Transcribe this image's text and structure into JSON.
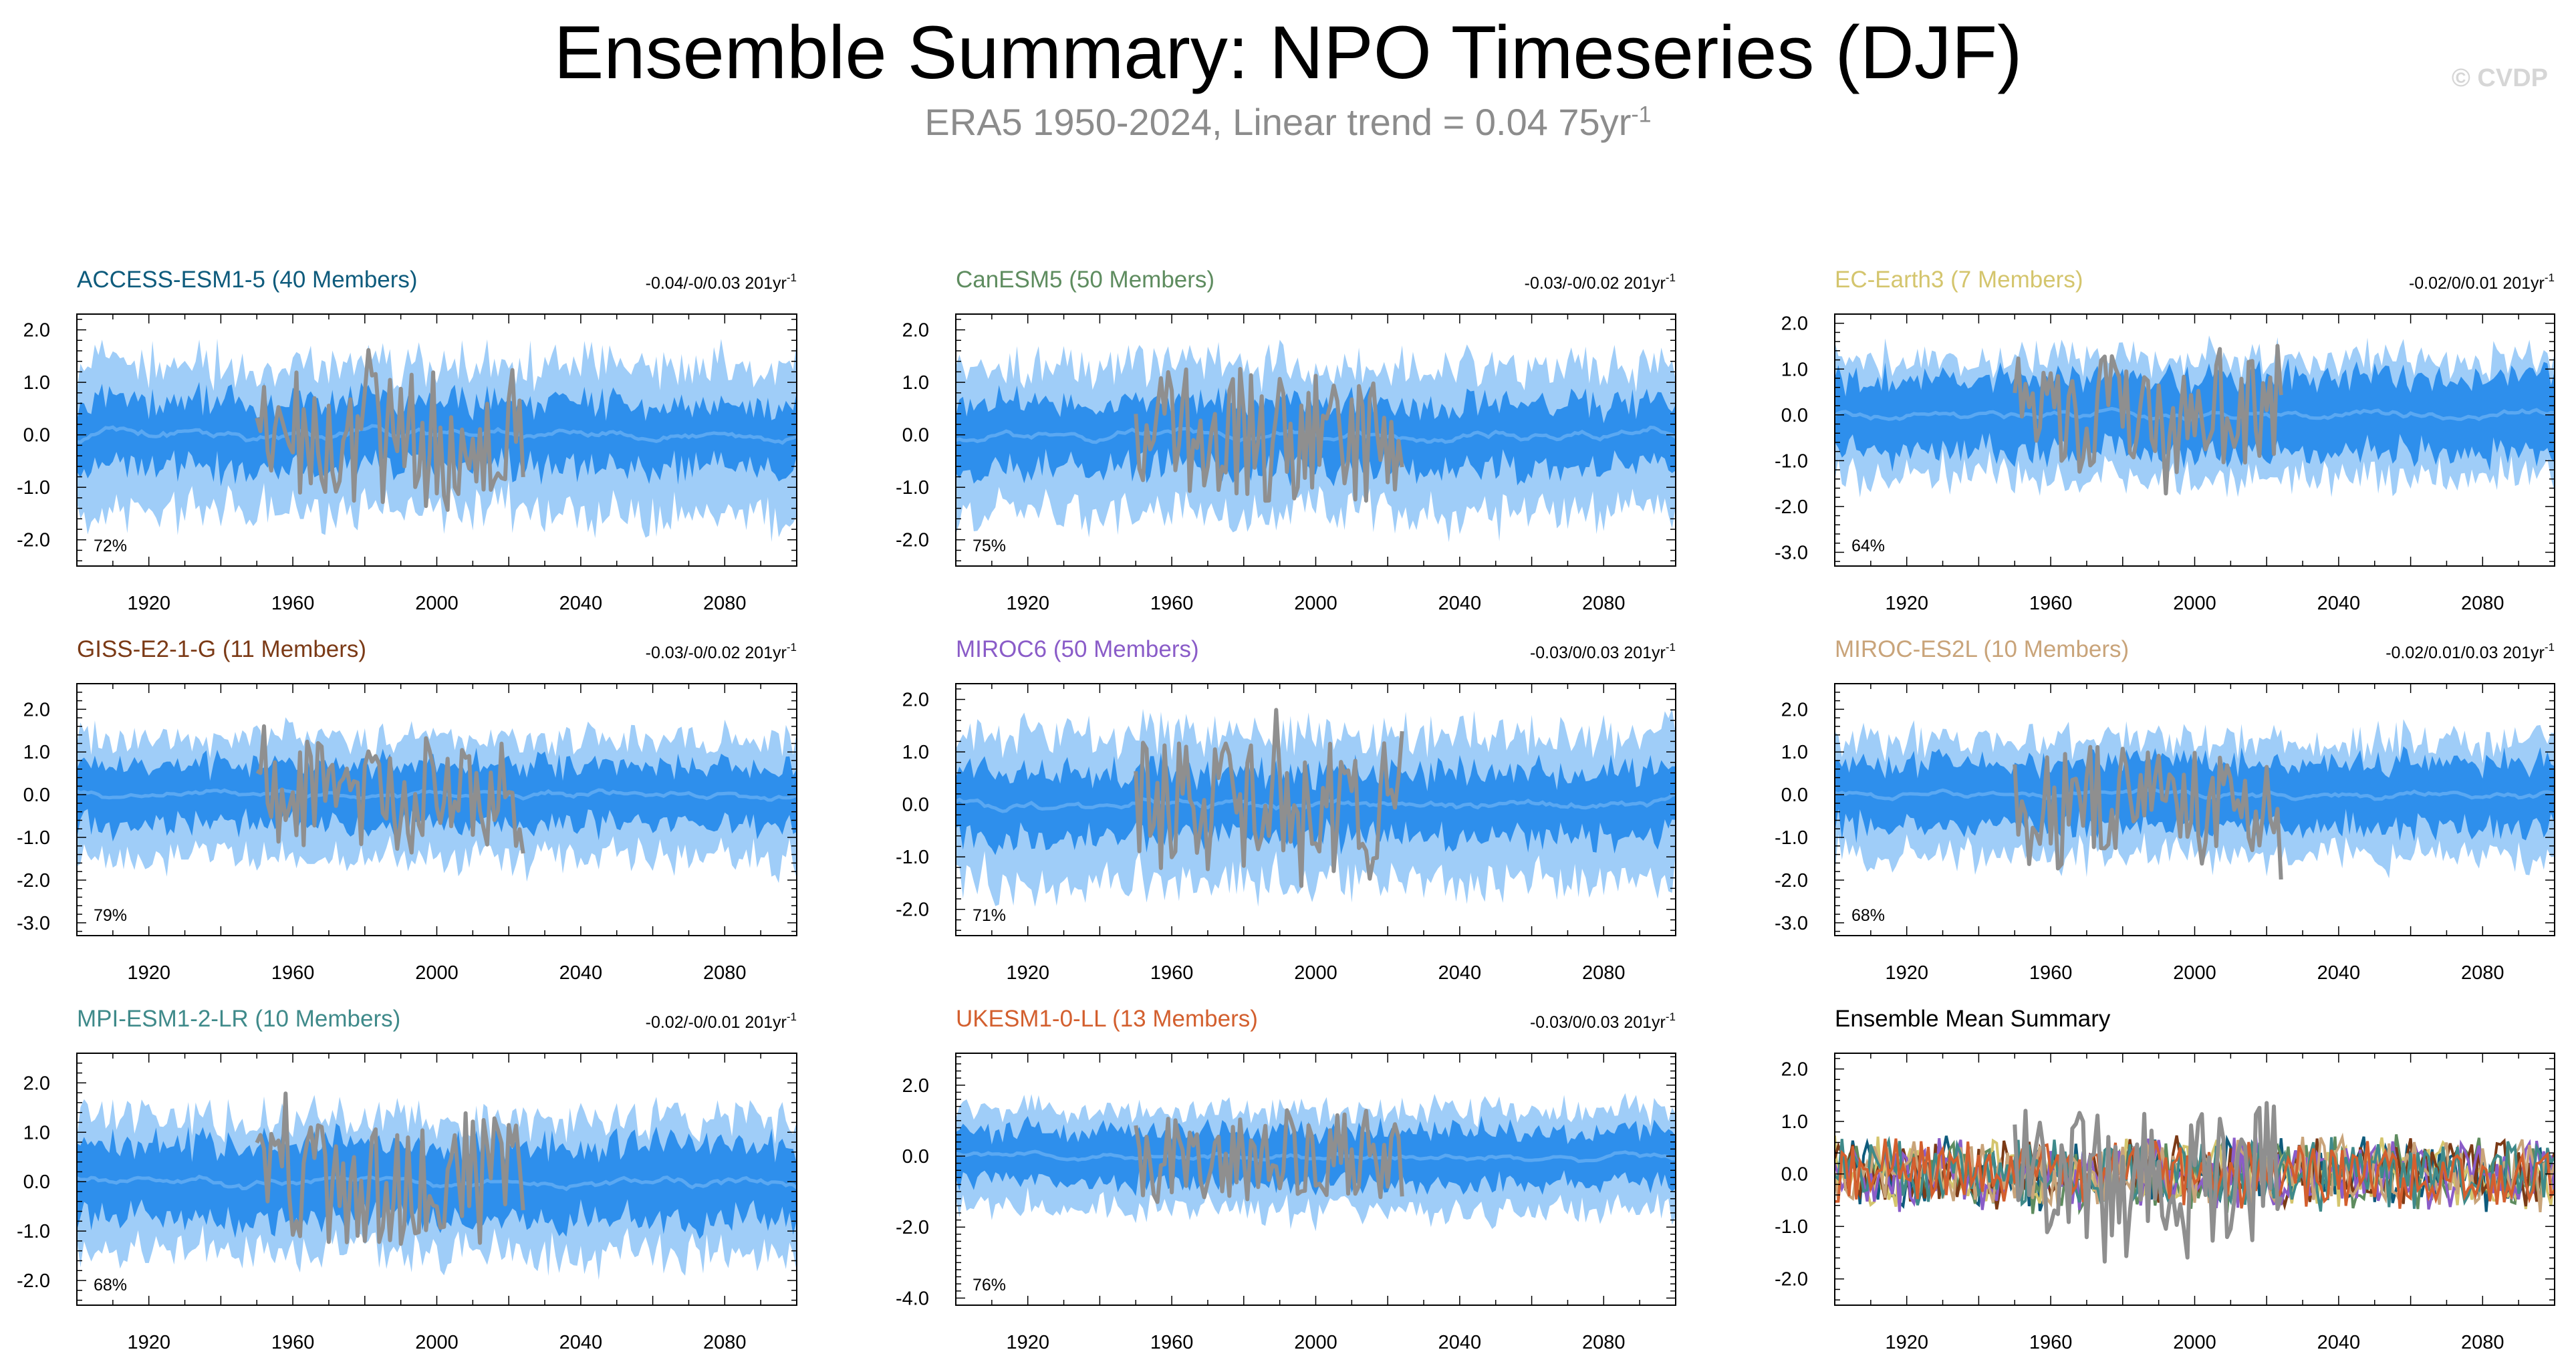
{
  "title": "Ensemble Summary: NPO Timeseries (DJF)",
  "subtitle": {
    "text": "ERA5 1950-2024, Linear trend = 0.04 75yr",
    "superscript": "-1"
  },
  "copyright": "© CVDP",
  "colors": {
    "band_outer": "#9fcdf8",
    "band_inner": "#2e8fec",
    "ensemble_mean": "#5aa8f2",
    "observations": "#8f8f8f"
  },
  "chart_data": [
    {
      "type": "area",
      "title": "ACCESS-ESM1-5 (40 Members)",
      "title_color": "#0e5b7c",
      "trend": "-0.04/-0/0.03 201yr",
      "trend_superscript": "-1",
      "percent_label": "72%",
      "xlim": [
        1900,
        2100
      ],
      "ylim": [
        -2.5,
        2.3
      ],
      "yticks": [
        "2.0",
        "1.0",
        "0.0",
        "-1.0",
        "-2.0"
      ],
      "ytick_values": [
        2,
        1,
        0,
        -1,
        -2
      ],
      "xticks": [
        "1920",
        "1960",
        "2000",
        "2040",
        "2080"
      ],
      "xtick_values": [
        1920,
        1960,
        2000,
        2040,
        2080
      ],
      "outer_halfwidth": 1.35,
      "inner_halfwidth": 0.62,
      "obs_period": [
        1950,
        2024
      ],
      "amp": 1.0
    },
    {
      "type": "area",
      "title": "CanESM5 (50 Members)",
      "title_color": "#5e8c5f",
      "trend": "-0.03/-0/0.02 201yr",
      "trend_superscript": "-1",
      "percent_label": "75%",
      "xlim": [
        1900,
        2100
      ],
      "ylim": [
        -2.5,
        2.3
      ],
      "yticks": [
        "2.0",
        "1.0",
        "0.0",
        "-1.0",
        "-2.0"
      ],
      "ytick_values": [
        2,
        1,
        0,
        -1,
        -2
      ],
      "xticks": [
        "1920",
        "1960",
        "2000",
        "2040",
        "2080"
      ],
      "xtick_values": [
        1920,
        1960,
        2000,
        2040,
        2080
      ],
      "outer_halfwidth": 1.35,
      "inner_halfwidth": 0.62,
      "obs_period": [
        1950,
        2024
      ],
      "amp": 1.0
    },
    {
      "type": "area",
      "title": "EC-Earth3 (7 Members)",
      "title_color": "#d4c56d",
      "trend": "-0.02/0/0.01 201yr",
      "trend_superscript": "-1",
      "percent_label": "64%",
      "xlim": [
        1900,
        2100
      ],
      "ylim": [
        -3.3,
        2.2
      ],
      "yticks": [
        "2.0",
        "1.0",
        "0.0",
        "-1.0",
        "-2.0",
        "-3.0"
      ],
      "ytick_values": [
        2,
        1,
        0,
        -1,
        -2,
        -3
      ],
      "xticks": [
        "1920",
        "1960",
        "2000",
        "2040",
        "2080"
      ],
      "xtick_values": [
        1920,
        1960,
        2000,
        2040,
        2080
      ],
      "outer_halfwidth": 1.25,
      "inner_halfwidth": 0.8,
      "obs_period": [
        1950,
        2024
      ],
      "amp": 1.0
    },
    {
      "type": "area",
      "title": "GISS-E2-1-G (11 Members)",
      "title_color": "#7b3a16",
      "trend": "-0.03/-0/0.02 201yr",
      "trend_superscript": "-1",
      "percent_label": "79%",
      "xlim": [
        1900,
        2100
      ],
      "ylim": [
        -3.3,
        2.6
      ],
      "yticks": [
        "2.0",
        "1.0",
        "0.0",
        "-1.0",
        "-2.0",
        "-3.0"
      ],
      "ytick_values": [
        2,
        1,
        0,
        -1,
        -2,
        -3
      ],
      "xticks": [
        "1920",
        "1960",
        "2000",
        "2040",
        "2080"
      ],
      "xtick_values": [
        1920,
        1960,
        2000,
        2040,
        2080
      ],
      "outer_halfwidth": 1.35,
      "inner_halfwidth": 0.7,
      "obs_period": [
        1950,
        2024
      ],
      "amp": 1.0
    },
    {
      "type": "area",
      "title": "MIROC6 (50 Members)",
      "title_color": "#8a5cc8",
      "trend": "-0.03/0/0.03 201yr",
      "trend_superscript": "-1",
      "percent_label": "71%",
      "xlim": [
        1900,
        2100
      ],
      "ylim": [
        -2.5,
        2.3
      ],
      "yticks": [
        "2.0",
        "1.0",
        "0.0",
        "-1.0",
        "-2.0"
      ],
      "ytick_values": [
        2,
        1,
        0,
        -1,
        -2
      ],
      "xticks": [
        "1920",
        "1960",
        "2000",
        "2040",
        "2080"
      ],
      "xtick_values": [
        1920,
        1960,
        2000,
        2040,
        2080
      ],
      "outer_halfwidth": 1.35,
      "inner_halfwidth": 0.62,
      "obs_period": [
        1950,
        2024
      ],
      "amp": 1.0
    },
    {
      "type": "area",
      "title": "MIROC-ES2L (10 Members)",
      "title_color": "#c9a47a",
      "trend": "-0.02/0.01/0.03 201yr",
      "trend_superscript": "-1",
      "percent_label": "68%",
      "xlim": [
        1900,
        2100
      ],
      "ylim": [
        -3.3,
        2.6
      ],
      "yticks": [
        "2.0",
        "1.0",
        "0.0",
        "-1.0",
        "-2.0",
        "-3.0"
      ],
      "ytick_values": [
        2,
        1,
        0,
        -1,
        -2,
        -3
      ],
      "xticks": [
        "1920",
        "1960",
        "2000",
        "2040",
        "2080"
      ],
      "xtick_values": [
        1920,
        1960,
        2000,
        2040,
        2080
      ],
      "outer_halfwidth": 1.3,
      "inner_halfwidth": 0.75,
      "obs_period": [
        1950,
        2024
      ],
      "amp": 1.0
    },
    {
      "type": "area",
      "title": "MPI-ESM1-2-LR (10 Members)",
      "title_color": "#3f8a8a",
      "trend": "-0.02/-0/0.01 201yr",
      "trend_superscript": "-1",
      "percent_label": "68%",
      "xlim": [
        1900,
        2100
      ],
      "ylim": [
        -2.5,
        2.6
      ],
      "yticks": [
        "2.0",
        "1.0",
        "0.0",
        "-1.0",
        "-2.0"
      ],
      "ytick_values": [
        2,
        1,
        0,
        -1,
        -2
      ],
      "xticks": [
        "1920",
        "1960",
        "2000",
        "2040",
        "2080"
      ],
      "xtick_values": [
        1920,
        1960,
        2000,
        2040,
        2080
      ],
      "outer_halfwidth": 1.3,
      "inner_halfwidth": 0.75,
      "obs_period": [
        1950,
        2024
      ],
      "amp": 1.0
    },
    {
      "type": "area",
      "title": "UKESM1-0-LL (13 Members)",
      "title_color": "#d35f2e",
      "trend": "-0.03/0/0.03 201yr",
      "trend_superscript": "-1",
      "percent_label": "76%",
      "xlim": [
        1900,
        2100
      ],
      "ylim": [
        -4.2,
        2.9
      ],
      "yticks": [
        "2.0",
        "0.0",
        "-2.0",
        "-4.0"
      ],
      "ytick_values": [
        2,
        0,
        -2,
        -4
      ],
      "xticks": [
        "1920",
        "1960",
        "2000",
        "2040",
        "2080"
      ],
      "xtick_values": [
        1920,
        1960,
        2000,
        2040,
        2080
      ],
      "outer_halfwidth": 1.35,
      "inner_halfwidth": 0.72,
      "obs_period": [
        1950,
        2024
      ],
      "amp": 1.0
    },
    {
      "type": "line",
      "title": "Ensemble Mean Summary",
      "title_color": "#000000",
      "trend": "",
      "trend_superscript": "",
      "percent_label": "",
      "xlim": [
        1900,
        2100
      ],
      "ylim": [
        -2.5,
        2.3
      ],
      "yticks": [
        "2.0",
        "1.0",
        "0.0",
        "-1.0",
        "-2.0"
      ],
      "ytick_values": [
        2,
        1,
        0,
        -1,
        -2
      ],
      "xticks": [
        "1920",
        "1960",
        "2000",
        "2040",
        "2080"
      ],
      "xtick_values": [
        1920,
        1960,
        2000,
        2040,
        2080
      ],
      "series_colors": [
        "#0e5b7c",
        "#5e8c5f",
        "#d4c56d",
        "#7b3a16",
        "#8a5cc8",
        "#c9a47a",
        "#3f8a8a",
        "#d35f2e"
      ],
      "obs_period": [
        1950,
        2024
      ],
      "amp": 0.35
    }
  ]
}
